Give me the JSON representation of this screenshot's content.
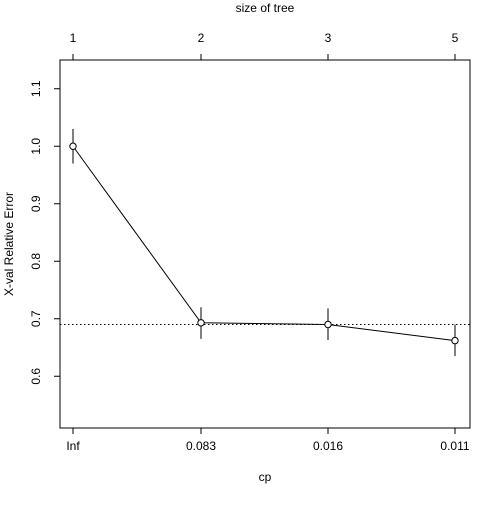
{
  "chart_data": {
    "type": "line",
    "xlabel": "cp",
    "ylabel": "X-val Relative Error",
    "top_axis_label": "size of tree",
    "x_tick_labels": [
      "Inf",
      "0.083",
      "0.016",
      "0.011"
    ],
    "top_tick_labels": [
      "1",
      "2",
      "3",
      "5"
    ],
    "y_ticks": [
      "0.6",
      "0.7",
      "0.8",
      "0.9",
      "1.0",
      "1.1"
    ],
    "ylim": [
      0.51,
      1.15
    ],
    "reference_line": 0.69,
    "points": [
      {
        "cp": "Inf",
        "size": 1,
        "xerror": 1.0,
        "lower": 0.97,
        "upper": 1.03
      },
      {
        "cp": "0.083",
        "size": 2,
        "xerror": 0.693,
        "lower": 0.665,
        "upper": 0.72
      },
      {
        "cp": "0.016",
        "size": 3,
        "xerror": 0.69,
        "lower": 0.663,
        "upper": 0.718
      },
      {
        "cp": "0.011",
        "size": 5,
        "xerror": 0.662,
        "lower": 0.635,
        "upper": 0.69
      }
    ],
    "grid": false
  }
}
